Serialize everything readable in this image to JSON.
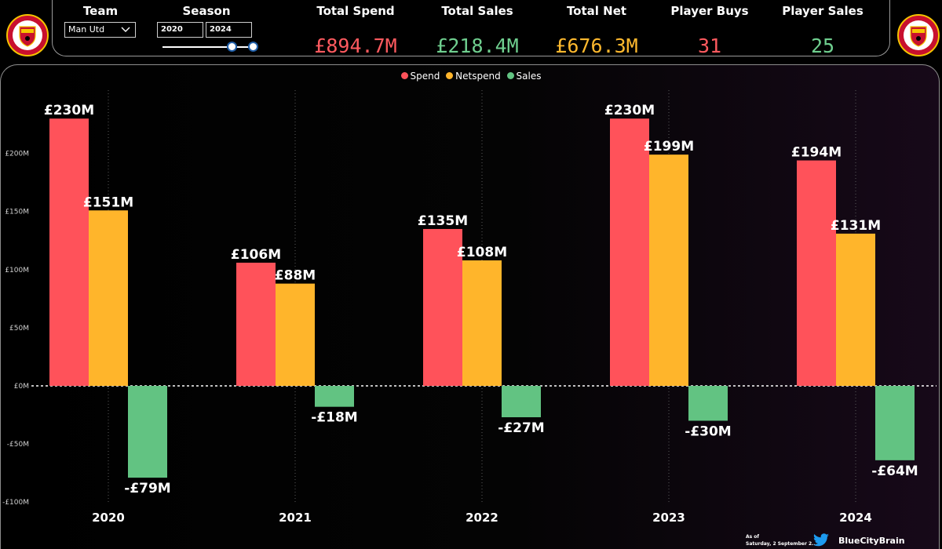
{
  "filters": {
    "team_label": "Team",
    "team_value": "Man Utd",
    "season_label": "Season",
    "season_from": "2020",
    "season_to": "2024"
  },
  "kpis": [
    {
      "label": "Total Spend",
      "value": "£894.7M",
      "color": "#ff5a5f"
    },
    {
      "label": "Total Sales",
      "value": "£218.4M",
      "color": "#6fcf8f"
    },
    {
      "label": "Total Net",
      "value": "£676.3M",
      "color": "#ffb92e"
    },
    {
      "label": "Player Buys",
      "value": "31",
      "color": "#ff5a5f"
    },
    {
      "label": "Player Sales",
      "value": "25",
      "color": "#6fcf8f"
    }
  ],
  "icons": {
    "team_crest": "club-crest-icon",
    "dropdown": "chevron-down-icon",
    "social": "twitter-icon"
  },
  "footer": {
    "as_of_label": "As of",
    "as_of_value": "Saturday, 2 September 2...",
    "handle": "BlueCityBrain"
  },
  "chart_data": {
    "type": "bar",
    "categories": [
      "2020",
      "2021",
      "2022",
      "2023",
      "2024"
    ],
    "series": [
      {
        "name": "Spend",
        "color": "#ff525a",
        "values": [
          230,
          106,
          135,
          230,
          194
        ],
        "labels": [
          "£230M",
          "£106M",
          "£135M",
          "£230M",
          "£194M"
        ]
      },
      {
        "name": "Netspend",
        "color": "#ffb52b",
        "values": [
          151,
          88,
          108,
          199,
          131
        ],
        "labels": [
          "£151M",
          "£88M",
          "£108M",
          "£199M",
          "£131M"
        ]
      },
      {
        "name": "Sales",
        "color": "#62c382",
        "values": [
          -79,
          -18,
          -27,
          -30,
          -64
        ],
        "labels": [
          "-£79M",
          "-£18M",
          "-£27M",
          "-£30M",
          "-£64M"
        ]
      }
    ],
    "y_ticks": [
      {
        "value": 200,
        "label": "£200M"
      },
      {
        "value": 150,
        "label": "£150M"
      },
      {
        "value": 100,
        "label": "£100M"
      },
      {
        "value": 50,
        "label": "£50M"
      },
      {
        "value": 0,
        "label": "£0M"
      },
      {
        "value": -50,
        "label": "-£50M"
      },
      {
        "value": -100,
        "label": "-£100M"
      }
    ],
    "ylim": [
      -100,
      230
    ],
    "title": "",
    "xlabel": "",
    "ylabel": "",
    "legend_position": "top-center",
    "zero_line": "dotted"
  }
}
